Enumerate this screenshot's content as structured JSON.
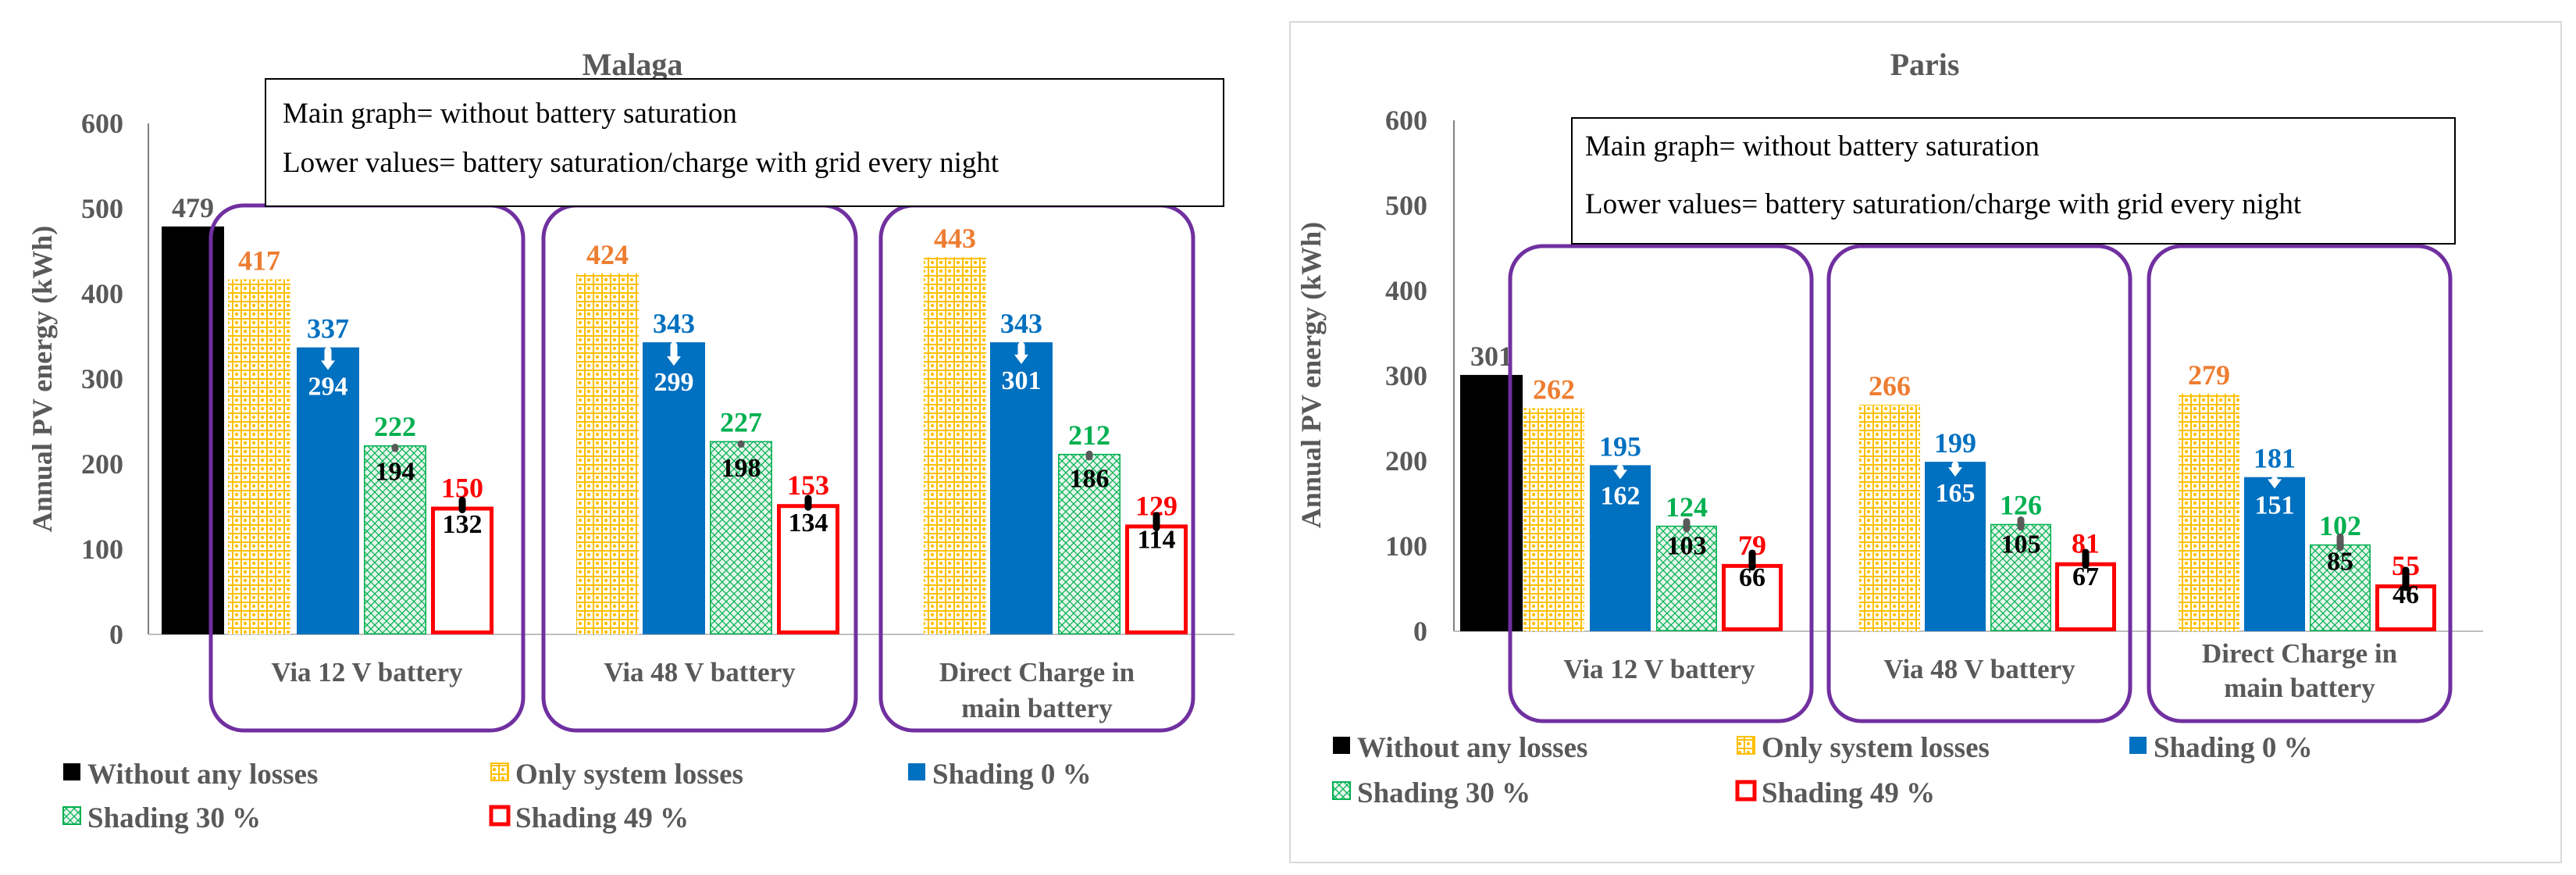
{
  "colors": {
    "black": "#000000",
    "orange_label": "#ed7d31",
    "dot_yellow": "#ffc000",
    "blue": "#0070c0",
    "green": "#00b050",
    "red": "#ff0000",
    "purple": "#7030a0",
    "axis_text": "#595959",
    "gray_marker": "#595959"
  },
  "legend_items": [
    {
      "key": "none",
      "label": "Without any losses"
    },
    {
      "key": "sys",
      "label": "Only system losses"
    },
    {
      "key": "s0",
      "label": "Shading 0 %"
    },
    {
      "key": "s30",
      "label": "Shading 30 %"
    },
    {
      "key": "s49",
      "label": "Shading 49 %"
    }
  ],
  "chart_data": [
    {
      "type": "bar",
      "title": "Malaga",
      "ylabel": "Annual PV energy (kWh)",
      "ylim": [
        0,
        600
      ],
      "yticks": [
        "0",
        "100",
        "200",
        "300",
        "400",
        "500",
        "600"
      ],
      "note_lines": [
        "Main graph= without battery saturation",
        "Lower values= battery saturation/charge with grid every night"
      ],
      "without_losses": {
        "value": 479,
        "label": "479"
      },
      "groups": [
        {
          "label_lines": [
            "Via 12 V battery"
          ],
          "bars": [
            {
              "key": "sys",
              "value": 417,
              "label": "417"
            },
            {
              "key": "s0",
              "value": 337,
              "label": "337",
              "lower": 294,
              "lower_label": "294"
            },
            {
              "key": "s30",
              "value": 222,
              "label": "222",
              "lower": 194,
              "lower_label": "194"
            },
            {
              "key": "s49",
              "value": 150,
              "label": "150",
              "lower": 132,
              "lower_label": "132"
            }
          ]
        },
        {
          "label_lines": [
            "Via 48 V battery"
          ],
          "bars": [
            {
              "key": "sys",
              "value": 424,
              "label": "424"
            },
            {
              "key": "s0",
              "value": 343,
              "label": "343",
              "lower": 299,
              "lower_label": "299"
            },
            {
              "key": "s30",
              "value": 227,
              "label": "227",
              "lower": 198,
              "lower_label": "198"
            },
            {
              "key": "s49",
              "value": 153,
              "label": "153",
              "lower": 134,
              "lower_label": "134"
            }
          ]
        },
        {
          "label_lines": [
            "Direct Charge in",
            "main battery"
          ],
          "bars": [
            {
              "key": "sys",
              "value": 443,
              "label": "443"
            },
            {
              "key": "s0",
              "value": 343,
              "label": "343",
              "lower": 301,
              "lower_label": "301"
            },
            {
              "key": "s30",
              "value": 212,
              "label": "212",
              "lower": 186,
              "lower_label": "186"
            },
            {
              "key": "s49",
              "value": 129,
              "label": "129",
              "lower": 114,
              "lower_label": "114"
            }
          ]
        }
      ]
    },
    {
      "type": "bar",
      "title": "Paris",
      "ylabel": "Annual PV energy (kWh)",
      "ylim": [
        0,
        600
      ],
      "yticks": [
        "0",
        "100",
        "200",
        "300",
        "400",
        "500",
        "600"
      ],
      "note_lines": [
        "Main graph= without battery saturation",
        "Lower values= battery saturation/charge with grid every night"
      ],
      "without_losses": {
        "value": 301,
        "label": "301"
      },
      "groups": [
        {
          "label_lines": [
            "Via 12 V battery"
          ],
          "bars": [
            {
              "key": "sys",
              "value": 262,
              "label": "262"
            },
            {
              "key": "s0",
              "value": 195,
              "label": "195",
              "lower": 162,
              "lower_label": "162"
            },
            {
              "key": "s30",
              "value": 124,
              "label": "124",
              "lower": 103,
              "lower_label": "103"
            },
            {
              "key": "s49",
              "value": 79,
              "label": "79",
              "lower": 66,
              "lower_label": "66"
            }
          ]
        },
        {
          "label_lines": [
            "Via 48 V battery"
          ],
          "bars": [
            {
              "key": "sys",
              "value": 266,
              "label": "266"
            },
            {
              "key": "s0",
              "value": 199,
              "label": "199",
              "lower": 165,
              "lower_label": "165"
            },
            {
              "key": "s30",
              "value": 126,
              "label": "126",
              "lower": 105,
              "lower_label": "105"
            },
            {
              "key": "s49",
              "value": 81,
              "label": "81",
              "lower": 67,
              "lower_label": "67"
            }
          ]
        },
        {
          "label_lines": [
            "Direct Charge in",
            "main battery"
          ],
          "bars": [
            {
              "key": "sys",
              "value": 279,
              "label": "279"
            },
            {
              "key": "s0",
              "value": 181,
              "label": "181",
              "lower": 151,
              "lower_label": "151"
            },
            {
              "key": "s30",
              "value": 102,
              "label": "102",
              "lower": 85,
              "lower_label": "85"
            },
            {
              "key": "s49",
              "value": 55,
              "label": "55",
              "lower": 46,
              "lower_label": "46"
            }
          ]
        }
      ]
    }
  ]
}
